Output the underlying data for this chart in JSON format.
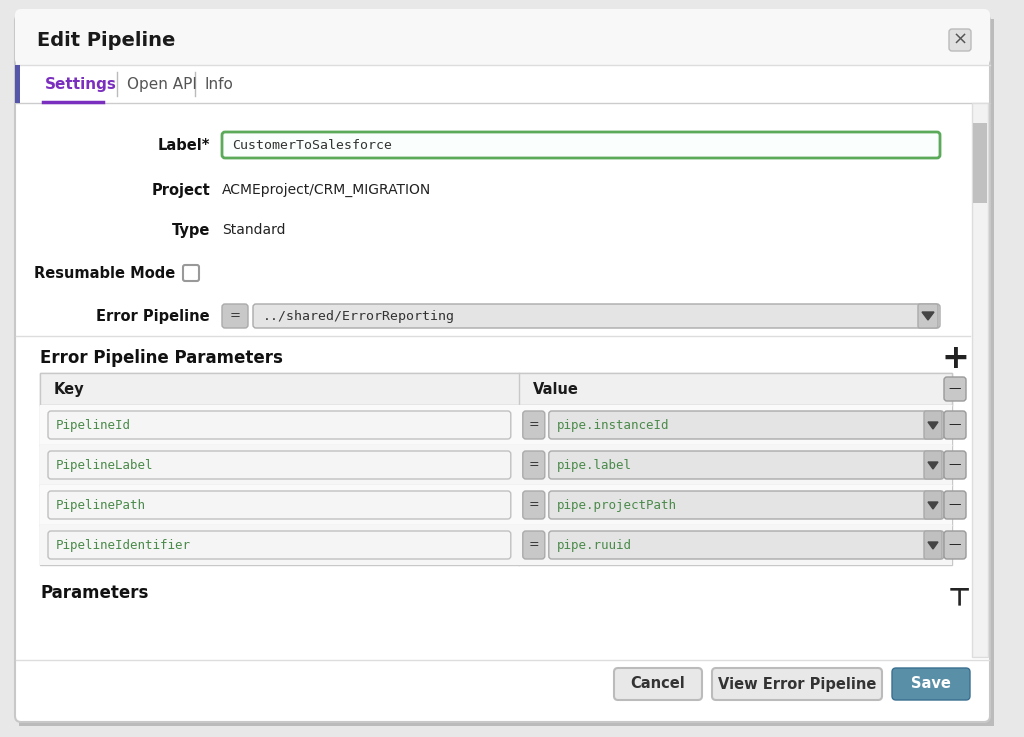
{
  "title": "Edit Pipeline",
  "tabs": [
    "Settings",
    "Open API",
    "Info"
  ],
  "active_tab": "Settings",
  "label_value": "CustomerToSalesforce",
  "project_value": "ACMEproject/CRM_MIGRATION",
  "type_value": "Standard",
  "error_pipeline_value": "../shared/ErrorReporting",
  "section_title": "Error Pipeline Parameters",
  "table_headers": [
    "Key",
    "Value"
  ],
  "table_rows": [
    {
      "key": "PipelineId",
      "value": "pipe.instanceId"
    },
    {
      "key": "PipelineLabel",
      "value": "pipe.label"
    },
    {
      "key": "PipelinePath",
      "value": "pipe.projectPath"
    },
    {
      "key": "PipelineIdentifier",
      "value": "pipe.ruuid"
    }
  ],
  "parameters_section": "Parameters",
  "buttons": [
    "Cancel",
    "View Error Pipeline",
    "Save"
  ],
  "outer_bg": "#e8e8e8",
  "dialog_bg": "#ffffff",
  "border_color": "#c8c8c8",
  "input_border_green": "#5aaa5a",
  "active_tab_color": "#7b2fbe",
  "save_button_color": "#5a8fa8",
  "save_text_color": "#ffffff",
  "cancel_button_color": "#e8e8e8",
  "cancel_text_color": "#333333",
  "table_border": "#c8c8c8",
  "table_header_bg": "#f0f0f0",
  "operator_bg": "#c8c8c8",
  "dropdown_bg": "#e4e4e4",
  "section_header_color": "#111111",
  "label_color": "#111111",
  "mono_font_color": "#4a8a4a",
  "scrollbar_track": "#eeeeee",
  "scrollbar_thumb": "#c0c0c0",
  "left_accent_color": "#5555aa",
  "tab_separator_color": "#bbbbbb",
  "row_sep_color": "#dddddd",
  "input_bg": "#f5f5f5"
}
